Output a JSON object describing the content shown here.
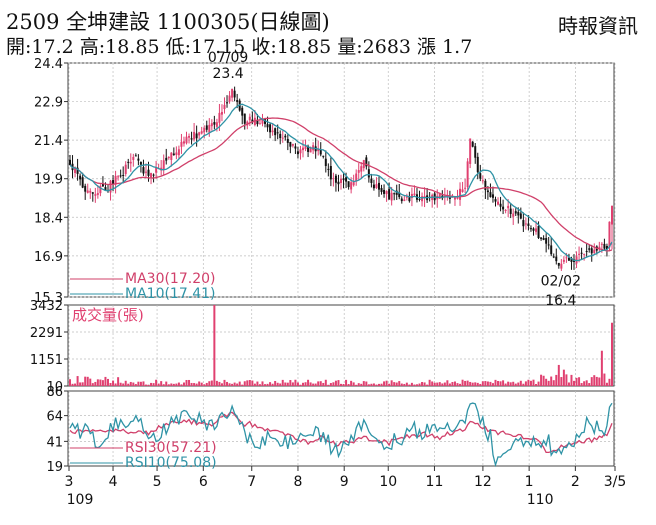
{
  "header": {
    "title": "2509  全坤建設 1100305(日線圖)",
    "source": "時報資訊",
    "stats": "開:17.2 高:18.85 低:17.15 收:18.85 量:2683 漲 1.7"
  },
  "colors": {
    "up": "#e04070",
    "down": "#111111",
    "ma30": "#d0406a",
    "ma10": "#2f93a6",
    "rsi30": "#d0406a",
    "rsi10": "#2f93a6",
    "volume": "#e04070",
    "grid": "#bdbdbd"
  },
  "chart_data": [
    {
      "type": "candlestick",
      "name": "price",
      "ylim": [
        15.3,
        24.4
      ],
      "yticks": [
        "24.4",
        "22.9",
        "21.4",
        "19.9",
        "18.4",
        "16.9",
        "15.3"
      ],
      "grid": true,
      "legend": [
        {
          "label": "MA30(17.20)",
          "color": "#d0406a"
        },
        {
          "label": "MA10(17.41)",
          "color": "#2f93a6"
        }
      ],
      "annotations": [
        {
          "date": "07/09",
          "value": "23.4"
        },
        {
          "date": "02/02",
          "value": "16.4"
        }
      ],
      "keypoints": [
        [
          0,
          20.6
        ],
        [
          5,
          19.6
        ],
        [
          10,
          19.4
        ],
        [
          15,
          19.6
        ],
        [
          20,
          20.0
        ],
        [
          25,
          20.9
        ],
        [
          30,
          20.0
        ],
        [
          35,
          20.3
        ],
        [
          40,
          20.8
        ],
        [
          45,
          21.4
        ],
        [
          50,
          21.6
        ],
        [
          55,
          21.9
        ],
        [
          60,
          22.4
        ],
        [
          64,
          23.4
        ],
        [
          68,
          22.2
        ],
        [
          72,
          22.2
        ],
        [
          76,
          22.1
        ],
        [
          80,
          21.6
        ],
        [
          85,
          21.5
        ],
        [
          90,
          21.0
        ],
        [
          95,
          21.1
        ],
        [
          100,
          20.9
        ],
        [
          103,
          19.9
        ],
        [
          108,
          19.7
        ],
        [
          112,
          19.8
        ],
        [
          116,
          20.5
        ],
        [
          120,
          19.6
        ],
        [
          126,
          19.2
        ],
        [
          132,
          19.2
        ],
        [
          138,
          19.2
        ],
        [
          144,
          19.2
        ],
        [
          150,
          19.2
        ],
        [
          156,
          19.4
        ],
        [
          158,
          21.4
        ],
        [
          160,
          20.6
        ],
        [
          162,
          19.8
        ],
        [
          168,
          19.1
        ],
        [
          174,
          18.6
        ],
        [
          180,
          18.0
        ],
        [
          186,
          17.7
        ],
        [
          190,
          17.0
        ],
        [
          193,
          16.6
        ],
        [
          197,
          16.7
        ],
        [
          202,
          16.9
        ],
        [
          208,
          17.1
        ],
        [
          212,
          17.3
        ],
        [
          214,
          18.85
        ]
      ]
    },
    {
      "type": "bar",
      "name": "volume",
      "title": "成交量(張)",
      "ylim": [
        0,
        3432
      ],
      "yticks": [
        "3432",
        "2291",
        "1151",
        "10"
      ],
      "spikes": [
        [
          57,
          3432
        ],
        [
          214,
          2683
        ],
        [
          210,
          1500
        ],
        [
          193,
          900
        ],
        [
          195,
          700
        ]
      ]
    },
    {
      "type": "line",
      "name": "rsi",
      "ylim": [
        19,
        86
      ],
      "yticks": [
        "86",
        "64",
        "41",
        "19"
      ],
      "series": [
        {
          "name": "RSI30(57.21)",
          "color": "#d0406a"
        },
        {
          "name": "RSI10(75.08)",
          "color": "#2f93a6"
        }
      ]
    }
  ],
  "x_axis": {
    "ticks": [
      {
        "label": "3",
        "idx": 0
      },
      {
        "label": "4",
        "idx": 20
      },
      {
        "label": "5",
        "idx": 40
      },
      {
        "label": "6",
        "idx": 61
      },
      {
        "label": "7",
        "idx": 83
      },
      {
        "label": "8",
        "idx": 104
      },
      {
        "label": "9",
        "idx": 125
      },
      {
        "label": "10",
        "idx": 145
      },
      {
        "label": "11",
        "idx": 166
      },
      {
        "label": "12",
        "idx": 188
      },
      {
        "label": "1",
        "idx": 209
      },
      {
        "label": "2",
        "idx": 230
      },
      {
        "label": "3/5",
        "idx": 248
      }
    ],
    "year_labels": [
      {
        "label": "109",
        "idx": 0
      },
      {
        "label": "110",
        "idx": 209
      }
    ]
  }
}
